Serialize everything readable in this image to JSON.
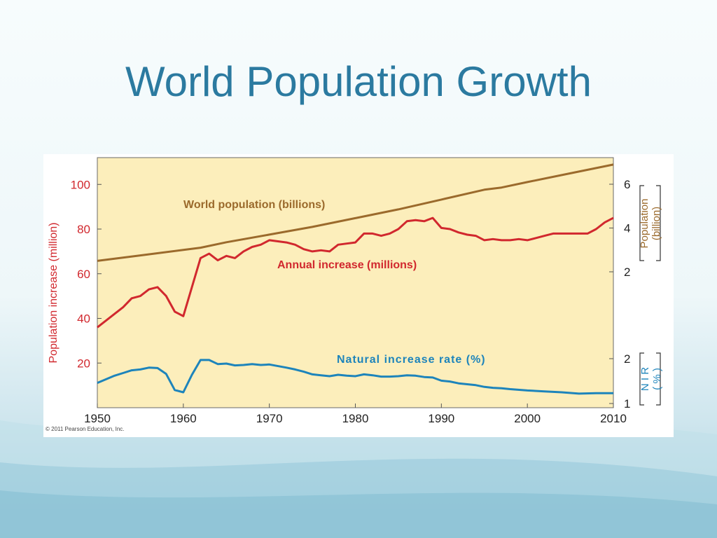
{
  "slide": {
    "title": "World Population Growth"
  },
  "copyright": "© 2011 Pearson Education, Inc.",
  "colors": {
    "title": "#2b7aa0",
    "plot_bg": "#fceebb",
    "population": "#9b6a2c",
    "annual": "#d1282e",
    "nir": "#1d84bb"
  },
  "chart_data": {
    "type": "line",
    "x_ticks": [
      "1950",
      "1960",
      "1970",
      "1980",
      "1990",
      "2000",
      "2010"
    ],
    "xlim": [
      1950,
      2010
    ],
    "left_axis": {
      "label": "Population increase (million)",
      "ticks": [
        "20",
        "40",
        "60",
        "80",
        "100"
      ],
      "range": [
        0,
        112
      ]
    },
    "right_axis_population": {
      "label_line1": "Population",
      "label_line2": "(billion)",
      "ticks": [
        "2",
        "4",
        "6"
      ]
    },
    "right_axis_nir": {
      "label_line1": "N I R",
      "label_line2": "( % )",
      "ticks": [
        "1",
        "2"
      ]
    },
    "series": [
      {
        "key": "population",
        "name": "World population (billions)",
        "x": [
          1950,
          1955,
          1960,
          1962,
          1965,
          1970,
          1975,
          1980,
          1985,
          1990,
          1995,
          1997,
          2000,
          2005,
          2010
        ],
        "y": [
          2.5,
          2.75,
          3.0,
          3.1,
          3.35,
          3.7,
          4.05,
          4.45,
          4.85,
          5.3,
          5.75,
          5.85,
          6.1,
          6.5,
          6.9
        ]
      },
      {
        "key": "annual",
        "name": "Annual increase (millions)",
        "x": [
          1950,
          1952,
          1953,
          1954,
          1955,
          1956,
          1957,
          1958,
          1959,
          1960,
          1962,
          1963,
          1964,
          1965,
          1966,
          1967,
          1968,
          1969,
          1970,
          1972,
          1973,
          1974,
          1975,
          1976,
          1977,
          1978,
          1979,
          1980,
          1981,
          1982,
          1983,
          1984,
          1985,
          1986,
          1987,
          1988,
          1989,
          1990,
          1991,
          1992,
          1993,
          1994,
          1995,
          1996,
          1997,
          1998,
          1999,
          2000,
          2001,
          2002,
          2003,
          2004,
          2005,
          2006,
          2007,
          2008,
          2009,
          2010
        ],
        "y": [
          36,
          42,
          45,
          49,
          50,
          53,
          54,
          50,
          43,
          41,
          67,
          69,
          66,
          68,
          67,
          70,
          72,
          73,
          75,
          74,
          73,
          71,
          70,
          70.5,
          70,
          73,
          73.5,
          74,
          78,
          78,
          77,
          78,
          80,
          83.5,
          84,
          83.5,
          85,
          80.5,
          80,
          78.5,
          77.5,
          77,
          75,
          75.5,
          75,
          75,
          75.5,
          75,
          76,
          77,
          78,
          78,
          78,
          78,
          78,
          80,
          83,
          85
        ]
      },
      {
        "key": "nir",
        "name": "Natural increase rate (%)",
        "x": [
          1950,
          1952,
          1953,
          1954,
          1955,
          1956,
          1957,
          1958,
          1959,
          1960,
          1961,
          1962,
          1963,
          1964,
          1965,
          1966,
          1967,
          1968,
          1969,
          1970,
          1972,
          1973,
          1974,
          1975,
          1976,
          1977,
          1978,
          1979,
          1980,
          1981,
          1982,
          1983,
          1984,
          1985,
          1986,
          1987,
          1988,
          1989,
          1990,
          1991,
          1992,
          1993,
          1994,
          1995,
          1996,
          1997,
          1998,
          2000,
          2002,
          2004,
          2006,
          2008,
          2010
        ],
        "y": [
          1.46,
          1.62,
          1.68,
          1.74,
          1.76,
          1.8,
          1.79,
          1.66,
          1.3,
          1.25,
          1.64,
          1.97,
          1.97,
          1.88,
          1.89,
          1.85,
          1.86,
          1.88,
          1.86,
          1.87,
          1.8,
          1.76,
          1.71,
          1.65,
          1.63,
          1.61,
          1.64,
          1.62,
          1.61,
          1.65,
          1.63,
          1.6,
          1.6,
          1.61,
          1.63,
          1.62,
          1.59,
          1.58,
          1.51,
          1.49,
          1.45,
          1.43,
          1.41,
          1.37,
          1.35,
          1.34,
          1.32,
          1.29,
          1.27,
          1.25,
          1.22,
          1.23,
          1.23
        ]
      }
    ]
  }
}
